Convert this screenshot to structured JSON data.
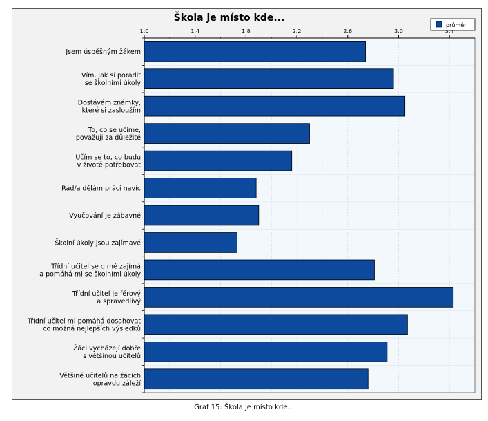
{
  "chart_data": {
    "type": "bar",
    "orientation": "horizontal",
    "title": "Škola je místo kde...",
    "xlabel": "",
    "ylabel": "",
    "xlim": [
      1.0,
      3.6
    ],
    "x_ticks": [
      "1.0",
      "1.4",
      "1.8",
      "2.2",
      "2.6",
      "3.0",
      "3.4"
    ],
    "grid": true,
    "legend_position": "top-right",
    "categories": [
      "Jsem úspěšným žákem",
      "Vím, jak si poradit\nse školními úkoly",
      "Dostávám známky,\nkteré si zasloužím",
      "To, co se učíme,\npovažuji za důležité",
      "Učím se to, co budu\nv životě potřebovat",
      "Rád/a dělám práci navíc",
      "Vyučování je zábavné",
      "Školní úkoly jsou zajímavé",
      "Třídní učitel se o mě zajímá\na pomáhá mi se školními úkoly",
      "Třídní učitel je férový\na spravedlivý",
      "Třídní učitel mi pomáhá dosahovat\nco možná nejlepších výsledků",
      "Žáci vycházejí dobře\ns většinou učitelů",
      "Většině učitelů na žácích\nopravdu záleží"
    ],
    "series": [
      {
        "name": "průměr",
        "color": "#0d4a9e",
        "values": [
          2.74,
          2.96,
          3.05,
          2.3,
          2.16,
          1.88,
          1.9,
          1.73,
          2.81,
          3.43,
          3.07,
          2.91,
          2.76
        ]
      }
    ]
  },
  "caption": "Graf 15: Škola je místo kde..."
}
